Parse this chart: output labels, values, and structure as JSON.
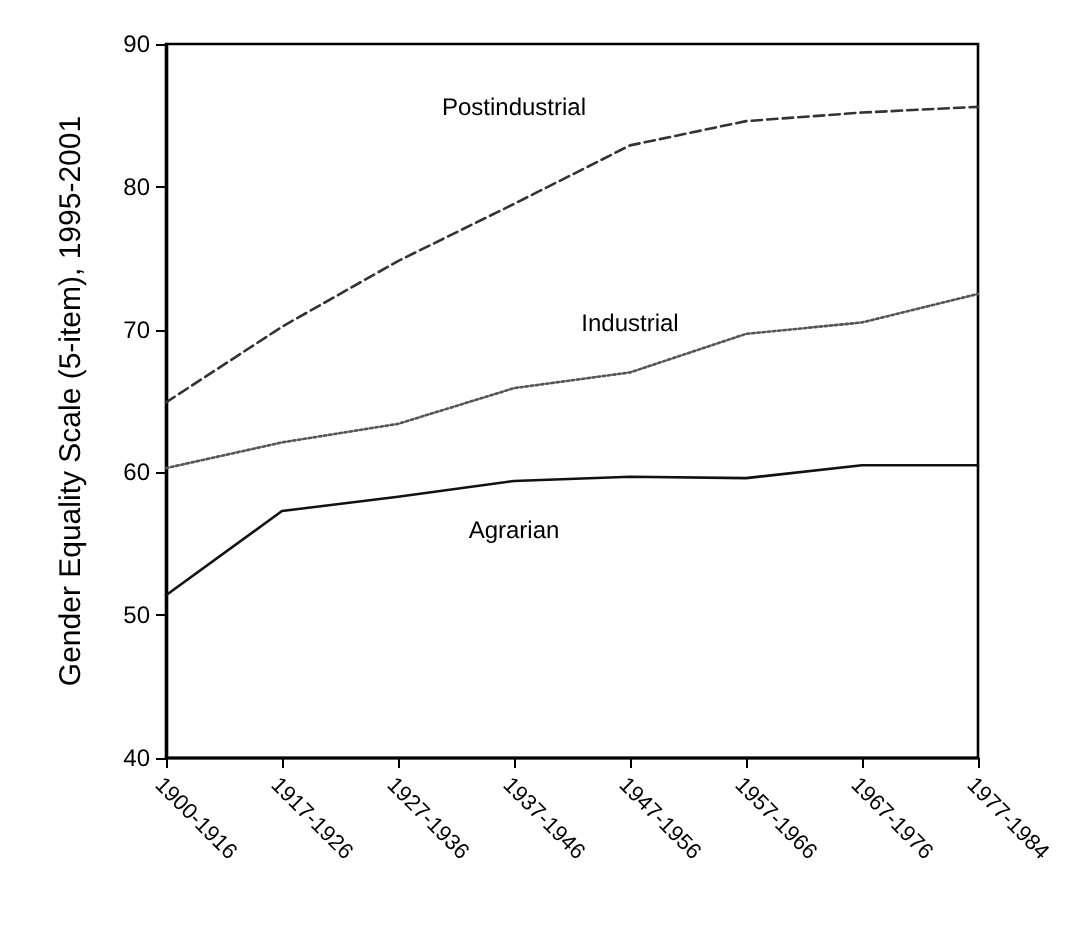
{
  "chart_data": {
    "type": "line",
    "ylabel": "Gender Equality Scale (5-item), 1995-2001",
    "categories": [
      "1900-1916",
      "1917-1926",
      "1927-1936",
      "1937-1946",
      "1947-1956",
      "1957-1966",
      "1967-1976",
      "1977-1984"
    ],
    "series": [
      {
        "name": "Postindustrial",
        "color": "#333333",
        "line_style": "dashed",
        "values": [
          64.9,
          70.2,
          74.8,
          78.8,
          82.9,
          84.6,
          85.2,
          85.6
        ]
      },
      {
        "name": "Industrial",
        "color": "#555555",
        "line_style": "dotted",
        "values": [
          60.3,
          62.1,
          63.4,
          65.9,
          67.0,
          69.7,
          70.5,
          72.5
        ]
      },
      {
        "name": "Agrarian",
        "color": "#111111",
        "line_style": "solid",
        "values": [
          51.4,
          57.3,
          58.3,
          59.4,
          59.7,
          59.6,
          60.5,
          60.5
        ]
      }
    ],
    "ylim": [
      40,
      90
    ],
    "yticks": [
      40,
      50,
      60,
      70,
      80,
      90
    ],
    "grid": false,
    "legend": false,
    "marker": "none"
  }
}
